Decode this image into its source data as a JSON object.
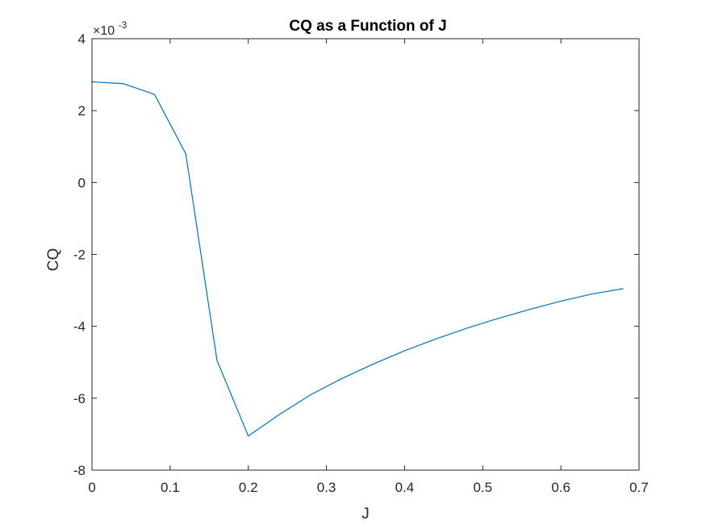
{
  "chart_data": {
    "type": "line",
    "title": "CQ as a Function of J",
    "xlabel": "J",
    "ylabel": "CQ",
    "xlim": [
      0,
      0.7
    ],
    "ylim": [
      -8,
      4
    ],
    "xticks": [
      0,
      0.1,
      0.2,
      0.3,
      0.4,
      0.5,
      0.6,
      0.7
    ],
    "xtick_labels": [
      "0",
      "0.1",
      "0.2",
      "0.3",
      "0.4",
      "0.5",
      "0.6",
      "0.7"
    ],
    "yticks": [
      -8,
      -6,
      -4,
      -2,
      0,
      2,
      4
    ],
    "ytick_labels": [
      "-8",
      "-6",
      "-4",
      "-2",
      "0",
      "2",
      "4"
    ],
    "y_exponent_label": "×10",
    "y_exponent_power": "-3",
    "y_scale_multiplier": 0.001,
    "grid": false,
    "series": [
      {
        "color": "#0072BD",
        "x": [
          0,
          0.04,
          0.08,
          0.12,
          0.16,
          0.2,
          0.24,
          0.28,
          0.32,
          0.36,
          0.4,
          0.44,
          0.48,
          0.52,
          0.56,
          0.6,
          0.64,
          0.68
        ],
        "y": [
          2.8,
          2.75,
          2.45,
          0.8,
          -4.95,
          -7.05,
          -6.45,
          -5.9,
          -5.45,
          -5.05,
          -4.68,
          -4.35,
          -4.05,
          -3.78,
          -3.53,
          -3.3,
          -3.1,
          -2.95
        ]
      }
    ]
  }
}
